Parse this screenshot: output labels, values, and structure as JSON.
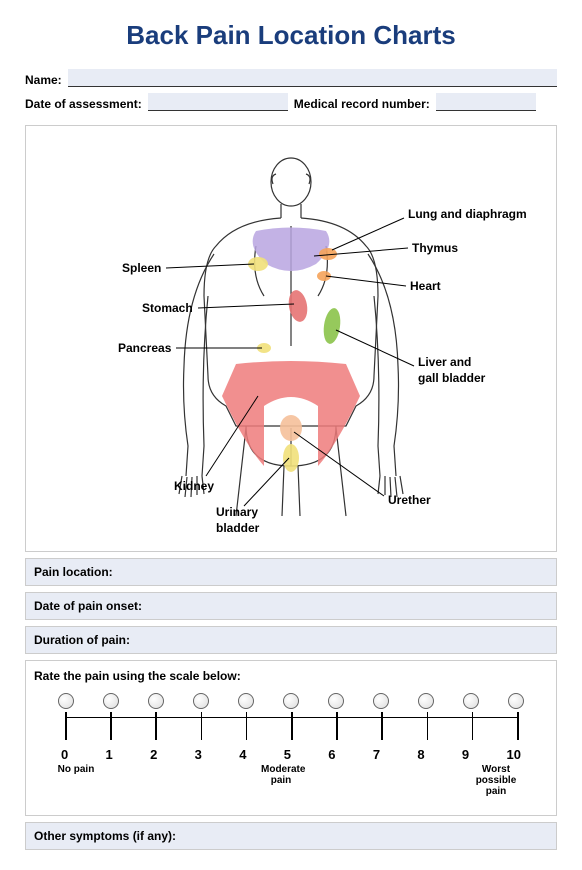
{
  "title": "Back Pain Location Charts",
  "fields": {
    "name_label": "Name:",
    "date_label": "Date of assessment:",
    "mrn_label": "Medical record number:"
  },
  "anatomy_labels": {
    "lung": "Lung and diaphragm",
    "thymus": "Thymus",
    "heart": "Heart",
    "liver1": "Liver and",
    "liver2": "gall bladder",
    "urether": "Urether",
    "spleen": "Spleen",
    "stomach": "Stomach",
    "pancreas": "Pancreas",
    "kidney": "Kidney",
    "urinary1": "Urinary",
    "urinary2": "bladder"
  },
  "colors": {
    "outline": "#333333",
    "purple": "#b9a4e0",
    "orange": "#f5a35a",
    "yellow": "#f1e07a",
    "red": "#e57373",
    "green": "#8bc34a",
    "peach": "#f5c09a"
  },
  "sections": {
    "pain_location": "Pain location:",
    "onset": "Date of pain onset:",
    "duration": "Duration of pain:",
    "rate": "Rate the pain using the scale below:",
    "other": "Other symptoms (if any):"
  },
  "scale": {
    "min": 0,
    "max": 10,
    "values": [
      "0",
      "1",
      "2",
      "3",
      "4",
      "5",
      "6",
      "7",
      "8",
      "9",
      "10"
    ],
    "low_label": "No pain",
    "mid_label": "Moderate\npain",
    "high_label": "Worst\npossible pain"
  }
}
